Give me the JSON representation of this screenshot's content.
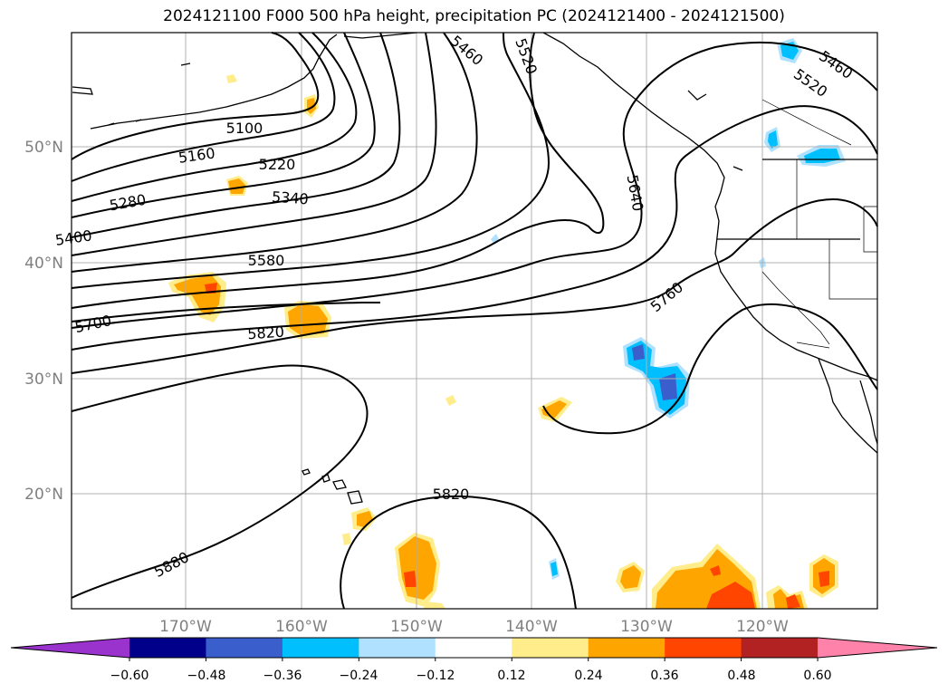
{
  "title": "2024121100 F000 500 hPa height, precipitation PC (2024121400 - 2024121500)",
  "lat_ticks": [
    "50°N",
    "40°N",
    "30°N",
    "20°N"
  ],
  "lon_ticks": [
    "170°W",
    "160°W",
    "150°W",
    "140°W",
    "130°W",
    "120°W"
  ],
  "contour_labels": [
    "5100",
    "5160",
    "5220",
    "5280",
    "5340",
    "5400",
    "5460",
    "5520",
    "5460",
    "5520",
    "5580",
    "5640",
    "5700",
    "5760",
    "5820",
    "5820",
    "5880"
  ],
  "colorbar": {
    "ticks": [
      "−0.60",
      "−0.48",
      "−0.36",
      "−0.24",
      "−0.12",
      "0.12",
      "0.24",
      "0.36",
      "0.48",
      "0.60"
    ],
    "colors": [
      "#9a32cd",
      "#00008b",
      "#3a5fcd",
      "#00bfff",
      "#b0e2ff",
      "#ffffff",
      "#ffec8b",
      "#ffa500",
      "#ff4500",
      "#b22222",
      "#ff82ab"
    ],
    "extend": "both"
  },
  "colors": {
    "contour": "#000000",
    "grid": "#b0b0b0",
    "tick_text": "#808080"
  }
}
